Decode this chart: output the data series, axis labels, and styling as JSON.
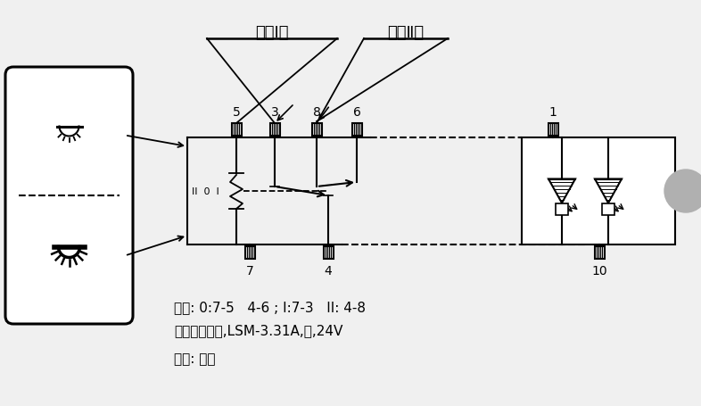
{
  "bg_color": "#f0f0f0",
  "label_shang_ji": "上按Ⅰ档",
  "label_xia_ji": "下按Ⅱ档",
  "label_gear": "档位: 0:7-5   4-6 ; I:7-3   II: 4-8",
  "label_switch": "顶灯面板开关,LSM-3.31A,白,24V",
  "label_color": "背光: 白色",
  "mode_label": "II  0  I"
}
